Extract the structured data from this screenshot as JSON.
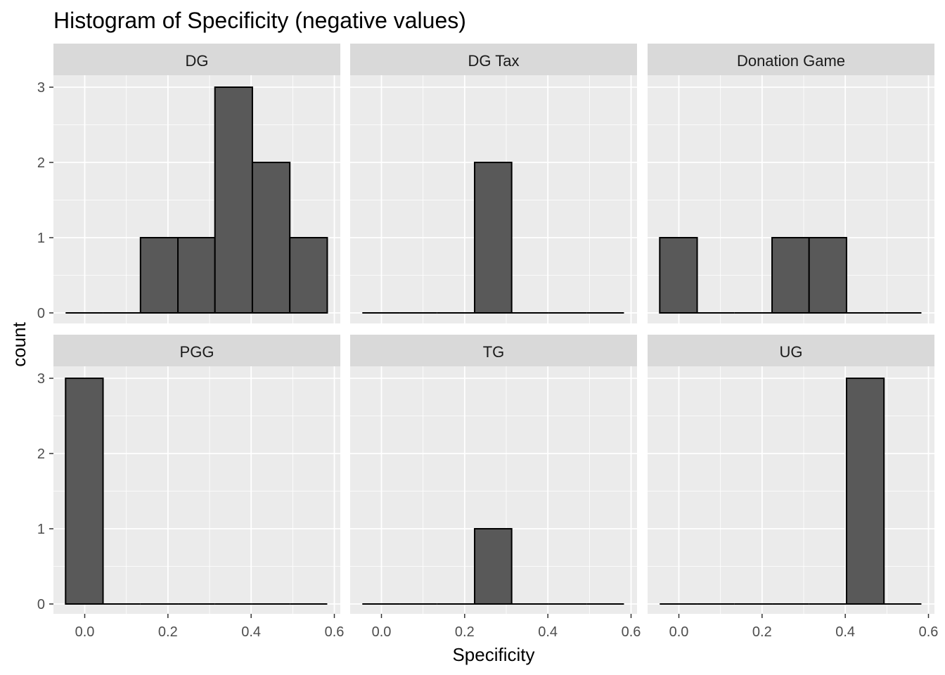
{
  "title": "Histogram of Specificity (negative values)",
  "chart_data": {
    "type": "bar",
    "title": "Histogram of Specificity (negative values)",
    "xlabel": "Specificity",
    "ylabel": "count",
    "xlim": [
      -0.047,
      0.6
    ],
    "ylim": [
      0,
      3
    ],
    "x_ticks": [
      0.0,
      0.2,
      0.4,
      0.6
    ],
    "x_tick_labels": [
      "0.0",
      "0.2",
      "0.4",
      "0.6"
    ],
    "y_ticks": [
      0,
      1,
      2,
      3
    ],
    "y_tick_labels": [
      "0",
      "1",
      "2",
      "3"
    ],
    "bin_edges": [
      -0.046,
      0.044,
      0.134,
      0.224,
      0.313,
      0.403,
      0.493,
      0.583
    ],
    "grid": true,
    "panels": [
      {
        "name": "DG",
        "counts": [
          0,
          0,
          1,
          1,
          3,
          2,
          1
        ]
      },
      {
        "name": "DG Tax",
        "counts": [
          0,
          0,
          0,
          2,
          0,
          0,
          0
        ]
      },
      {
        "name": "Donation Game",
        "counts": [
          1,
          0,
          0,
          1,
          1,
          0,
          0
        ]
      },
      {
        "name": "PGG",
        "counts": [
          3,
          0,
          0,
          0,
          0,
          0,
          0
        ]
      },
      {
        "name": "TG",
        "counts": [
          0,
          0,
          0,
          1,
          0,
          0,
          0
        ]
      },
      {
        "name": "UG",
        "counts": [
          0,
          0,
          0,
          0,
          0,
          3,
          0
        ]
      }
    ],
    "colors": {
      "panel_background": "#ebebeb",
      "strip_background": "#d9d9d9",
      "grid_major": "#ffffff",
      "bar_fill": "#595959",
      "bar_outline": "#000000",
      "tick_mark": "#333333"
    }
  }
}
